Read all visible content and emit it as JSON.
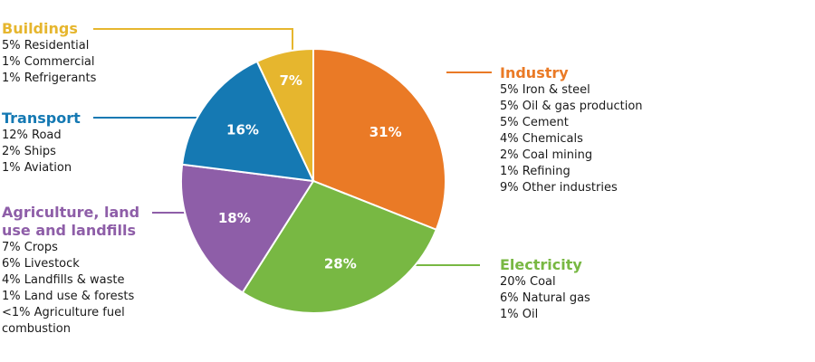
{
  "chart_data": {
    "type": "pie",
    "slices": [
      {
        "name": "Industry",
        "value": 31,
        "label": "31%",
        "color": "#ea7a26",
        "items": [
          "5% Iron & steel",
          "5% Oil & gas production",
          "5% Cement",
          "4% Chemicals",
          "2% Coal mining",
          "1% Refining",
          "9% Other industries"
        ]
      },
      {
        "name": "Electricity",
        "value": 28,
        "label": "28%",
        "color": "#78b843",
        "items": [
          "20% Coal",
          "6% Natural gas",
          "1% Oil"
        ]
      },
      {
        "name": "Agriculture, land use and landfills",
        "value": 18,
        "label": "18%",
        "color": "#8e5ea8",
        "items": [
          "7% Crops",
          "6% Livestock",
          "4% Landfills & waste",
          "1% Land use & forests",
          "<1% Agriculture fuel combustion"
        ]
      },
      {
        "name": "Transport",
        "value": 16,
        "label": "16%",
        "color": "#1579b3",
        "items": [
          "12% Road",
          "2% Ships",
          "1% Aviation"
        ]
      },
      {
        "name": "Buildings",
        "value": 7,
        "label": "7%",
        "color": "#e6b62e",
        "items": [
          "5% Residential",
          "1% Commercial",
          "1% Refrigerants"
        ]
      }
    ]
  }
}
